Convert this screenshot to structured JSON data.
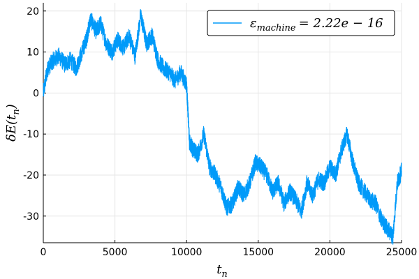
{
  "chart_data": {
    "type": "line",
    "title": "",
    "xlabel": {
      "main": "t",
      "sub": "n"
    },
    "ylabel": {
      "pre": "δE(t",
      "sub": "n",
      "post": ")"
    },
    "xlim": [
      0,
      25000
    ],
    "ylim": [
      -36.5,
      22
    ],
    "grid": true,
    "legend_position": "top-right",
    "x_ticks": [
      0,
      5000,
      10000,
      15000,
      20000,
      25000
    ],
    "x_tick_labels": [
      "0",
      "5000",
      "10000",
      "15000",
      "20000",
      "25000"
    ],
    "y_ticks": [
      -30,
      -20,
      -10,
      0,
      10,
      20
    ],
    "y_tick_labels": [
      "-30",
      "-20",
      "-10",
      "0",
      "10",
      "20"
    ],
    "series": [
      {
        "name": {
          "symbol": "ε",
          "sub": "machine",
          "rest": "= 2.22e − 16"
        },
        "color": "#009af9",
        "x": [
          0,
          300,
          700,
          1100,
          1500,
          1900,
          2300,
          2700,
          3000,
          3300,
          3700,
          4000,
          4400,
          4800,
          5200,
          5600,
          6000,
          6400,
          6800,
          7200,
          7600,
          8000,
          8400,
          8800,
          9200,
          9600,
          10000,
          10200,
          10500,
          10800,
          11200,
          11600,
          12000,
          12400,
          12800,
          13200,
          13600,
          14000,
          14400,
          14800,
          15200,
          15600,
          16000,
          16400,
          16800,
          17200,
          17600,
          18000,
          18400,
          18800,
          19200,
          19600,
          20000,
          20400,
          20800,
          21200,
          21600,
          22000,
          22400,
          22800,
          23200,
          23600,
          24000,
          24400,
          24700,
          25000
        ],
        "y": [
          0,
          6,
          8,
          9,
          7,
          8,
          6,
          10,
          13,
          18,
          15,
          17,
          12,
          10,
          13,
          11,
          14,
          9,
          19,
          12,
          14,
          8,
          6,
          5,
          3,
          5,
          2,
          -12,
          -14,
          -15,
          -10,
          -18,
          -20,
          -23,
          -28,
          -27,
          -23,
          -25,
          -22,
          -17,
          -18,
          -20,
          -24,
          -22,
          -27,
          -24,
          -26,
          -29,
          -22,
          -25,
          -21,
          -22,
          -18,
          -20,
          -14,
          -10,
          -17,
          -22,
          -24,
          -26,
          -27,
          -31,
          -33,
          -35,
          -22,
          -19
        ]
      }
    ]
  }
}
